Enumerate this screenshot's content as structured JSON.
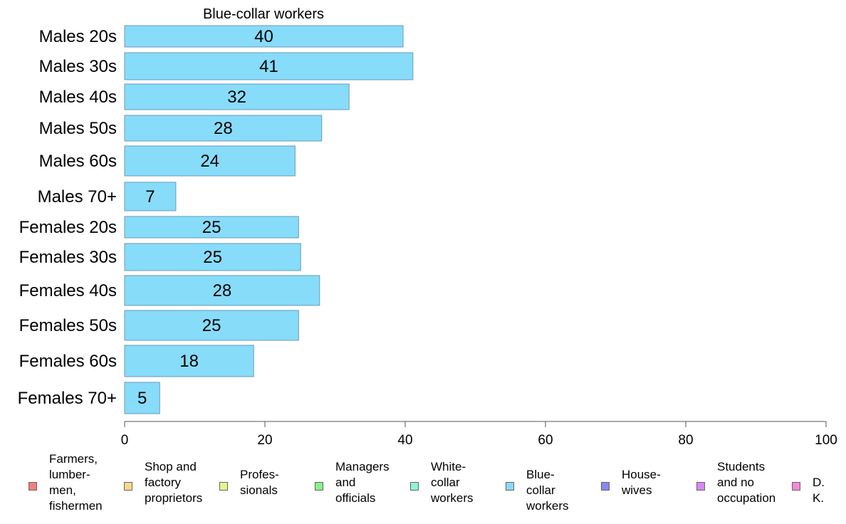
{
  "chart_data": {
    "type": "bar",
    "orientation": "horizontal",
    "title": "Blue-collar workers",
    "categories": [
      "Males 20s",
      "Males 30s",
      "Males 40s",
      "Males 50s",
      "Males 60s",
      "Males 70+",
      "Females 20s",
      "Females 30s",
      "Females 40s",
      "Females 50s",
      "Females 60s",
      "Females 70+"
    ],
    "values": [
      39.7,
      41.1,
      32.0,
      28.1,
      24.3,
      7.3,
      24.8,
      25.1,
      27.8,
      24.8,
      18.4,
      5.0
    ],
    "value_labels": [
      "40",
      "41",
      "32",
      "28",
      "24",
      "7",
      "25",
      "25",
      "28",
      "25",
      "18",
      "5"
    ],
    "xlim": [
      0,
      100
    ],
    "xticks": [
      0,
      20,
      40,
      60,
      80,
      100
    ],
    "xtick_labels": [
      "0",
      "20",
      "40",
      "60",
      "80",
      "100"
    ],
    "bar_color": "#87DCFA",
    "bar_stroke": "#6A9AB8",
    "grid": false,
    "legend_position": "bottom",
    "legend": [
      {
        "label": "Farmers,\nlumber-\nmen,\nfishermen",
        "color": "#F08080"
      },
      {
        "label": "Shop and\nfactory\nproprietors",
        "color": "#F8D98A"
      },
      {
        "label": "Profes-\nsionals",
        "color": "#E6F58A"
      },
      {
        "label": "Managers\nand\nofficials",
        "color": "#8AF08A"
      },
      {
        "label": "White-\ncollar\nworkers",
        "color": "#8AF5D6"
      },
      {
        "label": "Blue-collar\nworkers",
        "color": "#87DCFA"
      },
      {
        "label": "House-\nwives",
        "color": "#8888F2"
      },
      {
        "label": "Students\nand no\noccupation",
        "color": "#D688F5"
      },
      {
        "label": "D. K.",
        "color": "#F58AD6"
      }
    ]
  }
}
